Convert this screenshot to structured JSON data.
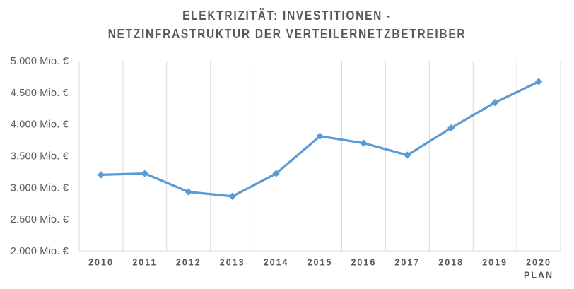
{
  "header": {
    "title_line1": "ELEKTRIZITÄT: INVESTITIONEN -",
    "title_line2": "NETZINFRASTRUKTUR DER VERTEILERNETZBETREIBER"
  },
  "chart_data": {
    "type": "line",
    "title": "ELEKTRIZITÄT: INVESTITIONEN - NETZINFRASTRUKTUR DER VERTEILERNETZBETREIBER",
    "categories": [
      "2010",
      "2011",
      "2012",
      "2013",
      "2014",
      "2015",
      "2016",
      "2017",
      "2018",
      "2019",
      "2020\nPLAN"
    ],
    "values": [
      3200,
      3220,
      2930,
      2860,
      3220,
      3810,
      3700,
      3510,
      3940,
      4340,
      4670
    ],
    "unit": "Mio. €",
    "xlabel": "",
    "ylabel": "",
    "ylim": [
      2000,
      5000
    ],
    "y_ticks": [
      {
        "value": 2000,
        "label": "2.000 Mio. €"
      },
      {
        "value": 2500,
        "label": "2.500 Mio. €"
      },
      {
        "value": 3000,
        "label": "3.000 Mio. €"
      },
      {
        "value": 3500,
        "label": "3.500 Mio. €"
      },
      {
        "value": 4000,
        "label": "4.000 Mio. €"
      },
      {
        "value": 4500,
        "label": "4.500 Mio. €"
      },
      {
        "value": 5000,
        "label": "5.000 Mio. €"
      }
    ],
    "grid": {
      "vertical": true,
      "horizontal": false
    },
    "legend": "none",
    "marker": "diamond",
    "colors": {
      "series": "#5B9BD5",
      "grid": "#D9D9D9",
      "axis_line": "#D9D9D9",
      "tick_text": "#595959",
      "title_text": "#595959"
    }
  }
}
